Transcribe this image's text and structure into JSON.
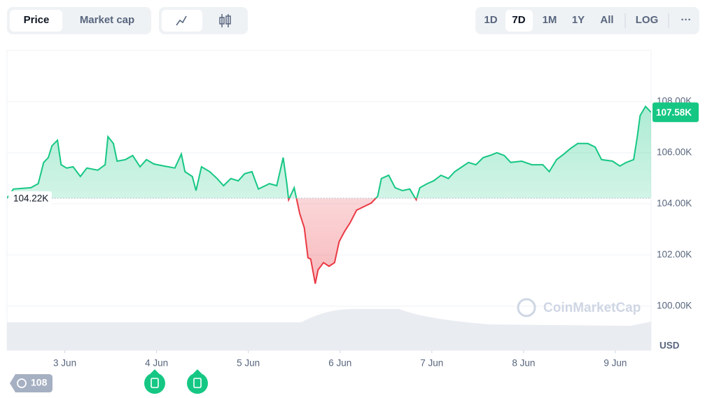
{
  "ui": {
    "tabs": [
      "Price",
      "Market cap"
    ],
    "ranges": [
      "1D",
      "7D",
      "1M",
      "1Y",
      "All"
    ],
    "log": "LOG",
    "more": "···",
    "history_count": 108,
    "selected_range": "7D"
  },
  "chart_data": {
    "type": "line",
    "x": [
      2.37,
      2.44,
      2.63,
      2.71,
      2.77,
      2.82,
      2.86,
      2.92,
      2.96,
      3.02,
      3.09,
      3.17,
      3.24,
      3.36,
      3.44,
      3.47,
      3.53,
      3.57,
      3.66,
      3.74,
      3.82,
      3.89,
      3.97,
      4.08,
      4.2,
      4.27,
      4.31,
      4.39,
      4.43,
      4.49,
      4.58,
      4.66,
      4.73,
      4.81,
      4.89,
      4.96,
      5.04,
      5.11,
      5.23,
      5.31,
      5.38,
      5.42,
      5.44,
      5.5,
      5.56,
      5.61,
      5.65,
      5.68,
      5.73,
      5.76,
      5.82,
      5.88,
      5.94,
      5.99,
      6.05,
      6.11,
      6.18,
      6.26,
      6.34,
      6.41,
      6.45,
      6.53,
      6.6,
      6.68,
      6.76,
      6.83,
      6.87,
      6.95,
      7.02,
      7.1,
      7.18,
      7.25,
      7.33,
      7.4,
      7.48,
      7.56,
      7.63,
      7.71,
      7.79,
      7.86,
      7.98,
      8.09,
      8.21,
      8.28,
      8.36,
      8.44,
      8.51,
      8.59,
      8.7,
      8.78,
      8.85,
      8.97,
      9.05,
      9.12,
      9.2,
      9.24,
      9.27,
      9.33,
      9.39
    ],
    "series": [
      {
        "color": "#16c784",
        "below_color": "#ea3943",
        "values": [
          104220,
          104580,
          104630,
          104790,
          105620,
          105810,
          106270,
          106490,
          105530,
          105400,
          105450,
          105070,
          105400,
          105320,
          105530,
          106630,
          106360,
          105670,
          105730,
          105890,
          105450,
          105730,
          105560,
          105480,
          105400,
          105950,
          105260,
          105070,
          104520,
          105450,
          105260,
          104990,
          104710,
          104990,
          104900,
          105180,
          105260,
          104580,
          104790,
          104710,
          105810,
          104790,
          104160,
          104630,
          103620,
          103070,
          101890,
          101840,
          100880,
          101420,
          101700,
          101560,
          101700,
          102520,
          102930,
          103260,
          103750,
          103890,
          104030,
          104300,
          104990,
          105120,
          104630,
          104520,
          104580,
          104160,
          104630,
          104790,
          104900,
          105120,
          104990,
          105260,
          105450,
          105620,
          105530,
          105810,
          105890,
          106000,
          105890,
          105620,
          105670,
          105530,
          105530,
          105260,
          105730,
          105950,
          106160,
          106360,
          106360,
          106220,
          105730,
          105670,
          105480,
          105620,
          105730,
          106630,
          107450,
          107810,
          107580
        ]
      }
    ],
    "xlim": [
      2.37,
      9.39
    ],
    "xticks": [
      {
        "value": 3,
        "label": "3 Jun"
      },
      {
        "value": 4,
        "label": "4 Jun"
      },
      {
        "value": 5,
        "label": "5 Jun"
      },
      {
        "value": 6,
        "label": "6 Jun"
      },
      {
        "value": 7,
        "label": "7 Jun"
      },
      {
        "value": 8,
        "label": "8 Jun"
      },
      {
        "value": 9,
        "label": "9 Jun"
      }
    ],
    "ylim": [
      98270,
      110000
    ],
    "yticks": [
      {
        "value": 100000,
        "label": "100.00K"
      },
      {
        "value": 102000,
        "label": "102.00K"
      },
      {
        "value": 104000,
        "label": "104.00K"
      },
      {
        "value": 106000,
        "label": "106.00K"
      },
      {
        "value": 108000,
        "label": "108.00K"
      }
    ],
    "baseline": {
      "value": 104220,
      "label": "104.22K"
    },
    "last_price": {
      "value": 107580,
      "label": "107.58K"
    },
    "y_unit": "USD",
    "watermark": "CoinMarketCap",
    "grid": true
  }
}
